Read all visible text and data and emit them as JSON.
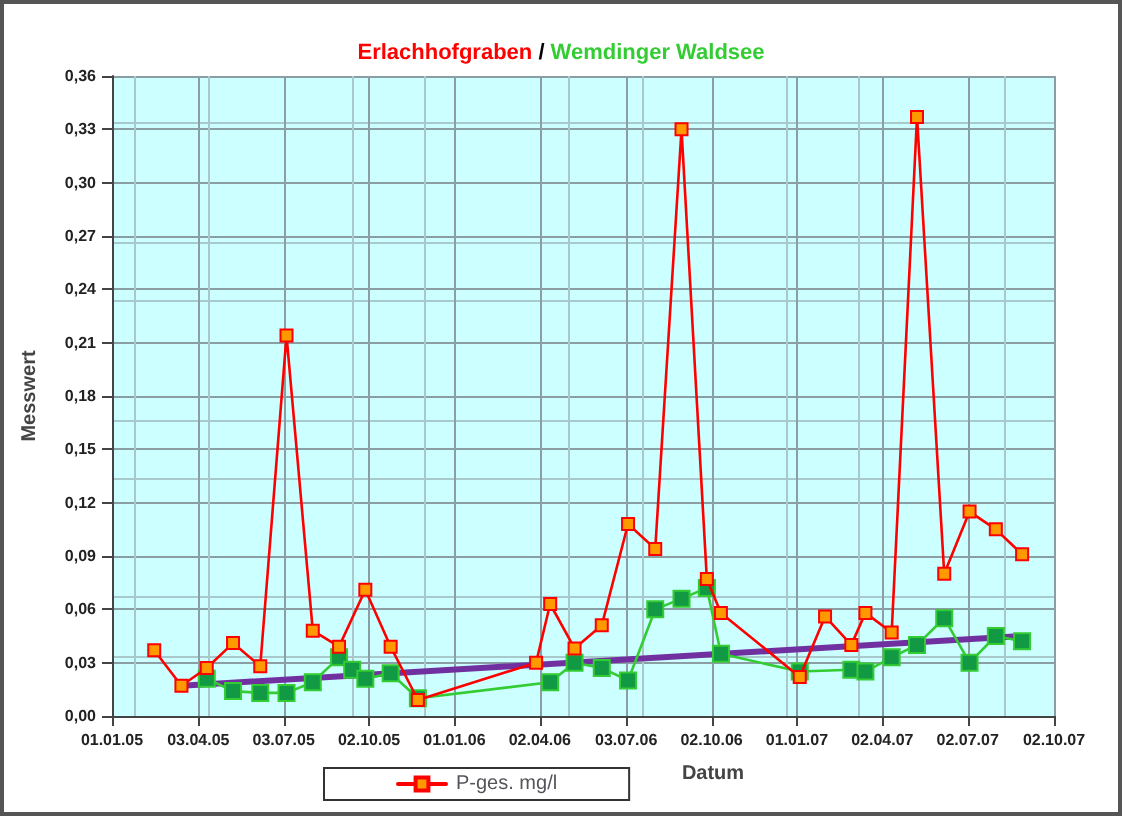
{
  "chart_data": {
    "type": "line",
    "title": "Erlachhofgraben / Wemdinger Waldsee",
    "xlabel": "Datum",
    "ylabel": "Messwert",
    "xlim": [
      "2005-01-01",
      "2007-10-02"
    ],
    "xticks": [
      {
        "value": "2005-01-01",
        "label": "01.01.05"
      },
      {
        "value": "2005-04-03",
        "label": "03.04.05"
      },
      {
        "value": "2005-07-03",
        "label": "03.07.05"
      },
      {
        "value": "2005-10-02",
        "label": "02.10.05"
      },
      {
        "value": "2006-01-01",
        "label": "01.01.06"
      },
      {
        "value": "2006-04-02",
        "label": "02.04.06"
      },
      {
        "value": "2006-07-03",
        "label": "03.07.06"
      },
      {
        "value": "2006-10-02",
        "label": "02.10.06"
      },
      {
        "value": "2007-01-01",
        "label": "01.01.07"
      },
      {
        "value": "2007-04-02",
        "label": "02.04.07"
      },
      {
        "value": "2007-07-02",
        "label": "02.07.07"
      },
      {
        "value": "2007-10-02",
        "label": "02.10.07"
      }
    ],
    "ylim": [
      0,
      0.36
    ],
    "yticks": [
      {
        "value": 0,
        "label": "0,00"
      },
      {
        "value": 0.03,
        "label": "0,03"
      },
      {
        "value": 0.06,
        "label": "0,06"
      },
      {
        "value": 0.09,
        "label": "0,09"
      },
      {
        "value": 0.12,
        "label": "0,12"
      },
      {
        "value": 0.15,
        "label": "0,15"
      },
      {
        "value": 0.18,
        "label": "0,18"
      },
      {
        "value": 0.21,
        "label": "0,21"
      },
      {
        "value": 0.24,
        "label": "0,24"
      },
      {
        "value": 0.27,
        "label": "0,27"
      },
      {
        "value": 0.3,
        "label": "0,30"
      },
      {
        "value": 0.33,
        "label": "0,33"
      },
      {
        "value": 0.36,
        "label": "0,36"
      }
    ],
    "grid": true,
    "legend": "bottom",
    "marker": "square",
    "series": [
      {
        "name": "P-ges. mg/l",
        "color": "#ff0000",
        "x": [
          "2005-02-15",
          "2005-03-16",
          "2005-04-12",
          "2005-05-10",
          "2005-06-08",
          "2005-07-06",
          "2005-08-03",
          "2005-08-31",
          "2005-09-28",
          "2005-10-25",
          "2005-11-23",
          "2006-03-29",
          "2006-04-13",
          "2006-05-09",
          "2006-06-07",
          "2006-07-05",
          "2006-08-03",
          "2006-08-31",
          "2006-09-27",
          "2006-10-12",
          "2007-01-04",
          "2007-01-31",
          "2007-02-28",
          "2007-03-15",
          "2007-04-12",
          "2007-05-09",
          "2007-06-07",
          "2007-07-04",
          "2007-08-01",
          "2007-08-29"
        ],
        "values": [
          0.037,
          0.017,
          0.027,
          0.041,
          0.028,
          0.214,
          0.048,
          0.039,
          0.071,
          0.039,
          0.009,
          0.03,
          0.063,
          0.038,
          0.051,
          0.108,
          0.094,
          0.33,
          0.077,
          0.058,
          0.022,
          0.056,
          0.04,
          0.058,
          0.047,
          0.337,
          0.08,
          0.115,
          0.105,
          0.091
        ]
      },
      {
        "color": "#33cc33",
        "x": [
          "2005-04-12",
          "2005-05-10",
          "2005-06-08",
          "2005-07-06",
          "2005-08-03",
          "2005-08-31",
          "2005-09-14",
          "2005-09-28",
          "2005-10-25",
          "2005-11-23",
          "2006-04-13",
          "2006-05-09",
          "2006-06-07",
          "2006-07-05",
          "2006-08-03",
          "2006-08-31",
          "2006-09-27",
          "2006-10-12",
          "2007-01-04",
          "2007-02-28",
          "2007-03-15",
          "2007-04-12",
          "2007-05-09",
          "2007-06-07",
          "2007-07-04",
          "2007-08-01",
          "2007-08-29"
        ],
        "values": [
          0.021,
          0.014,
          0.013,
          0.013,
          0.019,
          0.033,
          0.026,
          0.021,
          0.024,
          0.01,
          0.019,
          0.03,
          0.027,
          0.02,
          0.06,
          0.066,
          0.072,
          0.035,
          0.025,
          0.026,
          0.025,
          0.033,
          0.04,
          0.055,
          0.03,
          0.045,
          0.042
        ]
      },
      {
        "color": "#7030a0",
        "marker": "none",
        "x": [
          "2005-03-16",
          "2007-08-29"
        ],
        "values": [
          0.017,
          0.045
        ]
      }
    ]
  }
}
